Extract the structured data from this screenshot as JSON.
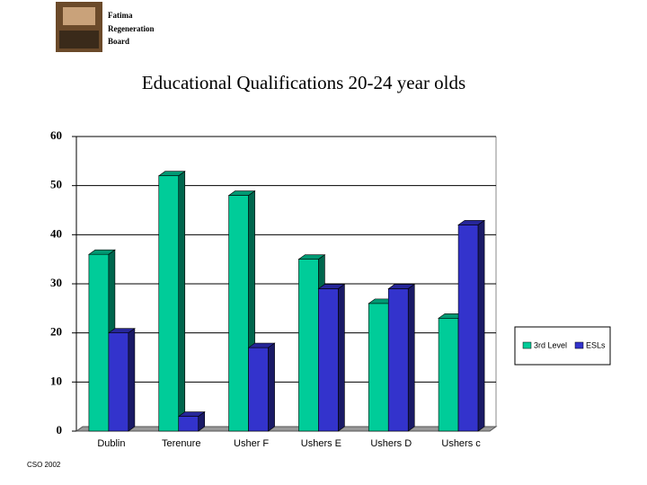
{
  "logo": {
    "lines": [
      "Fatima",
      "Regeneration",
      "Board"
    ]
  },
  "chart_data": {
    "type": "bar3d",
    "title": "Educational Qualifications 20-24 year olds",
    "categories": [
      "Dublin",
      "Terenure",
      "Usher F",
      "Ushers E",
      "Ushers D",
      "Ushers c"
    ],
    "series": [
      {
        "name": "3rd Level",
        "color": "#00cc99",
        "values": [
          36,
          52,
          48,
          35,
          26,
          23
        ]
      },
      {
        "name": "ESLs",
        "color": "#3333cc",
        "values": [
          20,
          3,
          17,
          29,
          29,
          42
        ]
      }
    ],
    "ylim": [
      0,
      60
    ],
    "yticks": [
      0,
      10,
      20,
      30,
      40,
      50,
      60
    ],
    "grid": true,
    "legend": "right"
  },
  "footer": "CSO 2002"
}
